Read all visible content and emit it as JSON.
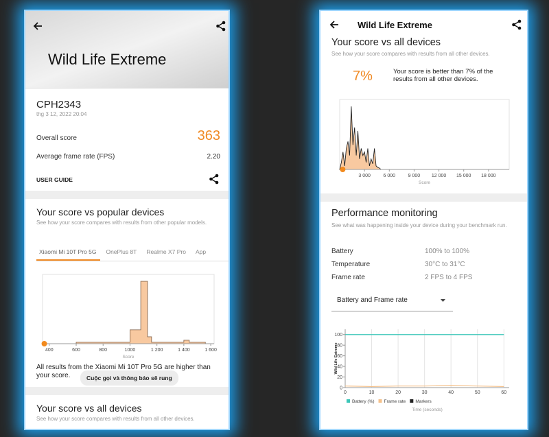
{
  "left_screen": {
    "header": {
      "title": "Wild Life Extreme"
    },
    "result": {
      "device": "CPH2343",
      "date": "thg 3 12, 2022 20:04",
      "overall_score_label": "Overall score",
      "overall_score": 363,
      "fps_label": "Average frame rate (FPS)",
      "fps": "2.20",
      "user_guide": "USER GUIDE"
    },
    "popular": {
      "title": "Your score vs popular devices",
      "description": "See how your score compares with results from other popular models.",
      "tabs": [
        "Xiaomi Mi 10T Pro 5G",
        "OnePlus 8T",
        "Realme X7 Pro",
        "App"
      ],
      "chart": {
        "type": "area",
        "color": "#f8c9a0",
        "line_color": "#8a6a50",
        "x": [
          350,
          600,
          600,
          1000,
          1000,
          1080,
          1080,
          1130,
          1130,
          1160,
          1160,
          1400,
          1400,
          1440,
          1440,
          1560,
          1560
        ],
        "values": [
          0,
          0,
          2,
          2,
          20,
          20,
          90,
          90,
          10,
          10,
          2,
          2,
          5,
          5,
          2,
          2,
          0
        ],
        "xlim": [
          350,
          1625
        ],
        "ylim": [
          0,
          100
        ],
        "xticks": [
          400,
          600,
          800,
          1000,
          {
            "value": 1200,
            "label": "1 200"
          },
          {
            "value": 1400,
            "label": "1 400"
          },
          {
            "value": 1600,
            "label": "1 600"
          }
        ],
        "xlabel": "Score"
      },
      "note": "All results from the Xiaomi Mi 10T Pro 5G are higher than your score."
    },
    "toast": "Cuộc gọi và thông báo sẽ rung",
    "all_devices": {
      "title": "Your score vs all devices",
      "description": "See how your score compares with results from all other devices."
    }
  },
  "right_screen": {
    "header": {
      "title": "Wild Life Extreme"
    },
    "all_devices": {
      "title": "Your score vs all devices",
      "description": "See how your score compares with results from all other devices.",
      "percentile": "7%",
      "percentile_text": "Your score is better than 7% of the results from all other devices.",
      "chart": {
        "type": "area",
        "color": "#f8c9a0",
        "line_color": "#222222",
        "x": [
          0,
          200,
          400,
          600,
          800,
          1000,
          1200,
          1400,
          1600,
          1800,
          2000,
          2200,
          2400,
          2600,
          2800,
          3000,
          3200,
          3400,
          3600,
          3800,
          4000,
          4200,
          4400,
          4600,
          4800,
          5000
        ],
        "values": [
          0,
          10,
          25,
          5,
          30,
          40,
          20,
          90,
          35,
          60,
          20,
          55,
          15,
          30,
          20,
          25,
          10,
          30,
          5,
          15,
          8,
          30,
          5,
          3,
          2,
          0
        ],
        "xlim": [
          0,
          20500
        ],
        "ylim": [
          0,
          100
        ],
        "xticks": [
          {
            "value": 3000,
            "label": "3 000"
          },
          {
            "value": 6000,
            "label": "6 000"
          },
          {
            "value": 9000,
            "label": "9 000"
          },
          {
            "value": 12000,
            "label": "12 000"
          },
          {
            "value": 15000,
            "label": "15 000"
          },
          {
            "value": 18000,
            "label": "18 000"
          }
        ],
        "xlabel": "Score"
      }
    },
    "performance": {
      "title": "Performance monitoring",
      "description": "See what was happening inside your device during your benchmark run.",
      "rows": [
        {
          "label": "Battery",
          "value": "100% to 100%"
        },
        {
          "label": "Temperature",
          "value": "30°C to 31°C"
        },
        {
          "label": "Frame rate",
          "value": "2 FPS to 4 FPS"
        }
      ],
      "dropdown": "Battery and Frame rate",
      "chart": {
        "type": "line",
        "ylabel": "Wild Life Extreme",
        "xlabel": "Time (seconds)",
        "xlim": [
          0,
          62
        ],
        "ylim": [
          0,
          110
        ],
        "xticks": [
          0,
          10,
          20,
          30,
          40,
          50,
          60
        ],
        "yticks": [
          0,
          20,
          40,
          60,
          80,
          100
        ],
        "x": [
          0,
          10,
          20,
          30,
          40,
          50,
          60
        ],
        "series": [
          {
            "name": "Battery (%)",
            "color": "#3cc6b8",
            "values": [
              100,
              100,
              100,
              100,
              100,
              100,
              100
            ]
          },
          {
            "name": "Frame rate",
            "color": "#f5c18a",
            "values": [
              3,
              2,
              3,
              3,
              4,
              3,
              2
            ]
          },
          {
            "name": "Markers",
            "color": "#222222",
            "values": [
              null,
              null,
              null,
              null,
              null,
              null,
              null
            ]
          }
        ]
      }
    }
  }
}
